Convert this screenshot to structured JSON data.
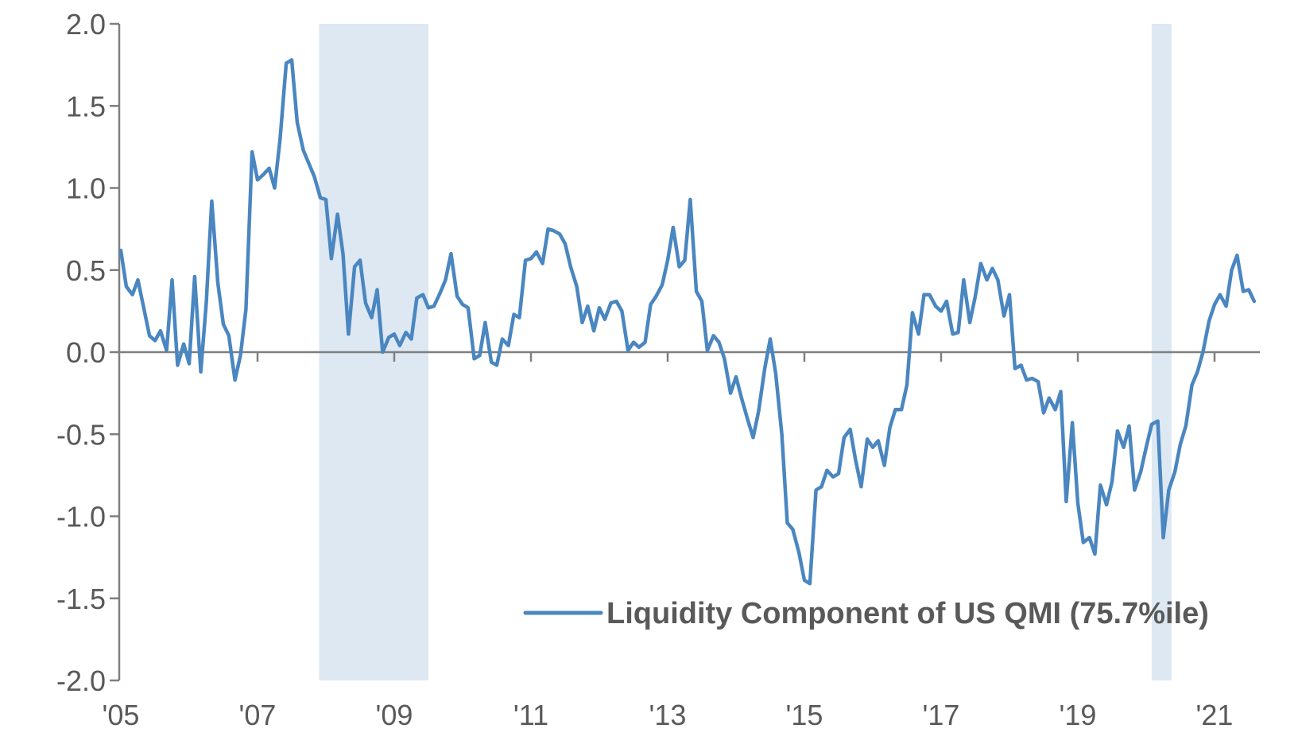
{
  "chart_data": {
    "type": "line",
    "title": "",
    "xlabel": "",
    "ylabel": "",
    "xlim": [
      2005.0,
      2021.75
    ],
    "ylim": [
      -2.0,
      2.0
    ],
    "y_ticks": [
      2.0,
      1.5,
      1.0,
      0.5,
      0.0,
      -0.5,
      -1.0,
      -1.5,
      -2.0
    ],
    "y_tick_labels": [
      "2.0",
      "1.5",
      "1.0",
      "0.5",
      "0.0",
      "-0.5",
      "-1.0",
      "-1.5",
      "-2.0"
    ],
    "x_ticks": [
      2005,
      2007,
      2009,
      2011,
      2013,
      2015,
      2017,
      2019,
      2021
    ],
    "x_tick_labels": [
      "'05",
      "'07",
      "'09",
      "'11",
      "'13",
      "'15",
      "'17",
      "'19",
      "'21"
    ],
    "shaded_periods": [
      {
        "label": "recession-2008",
        "start": 2007.9,
        "end": 2009.5
      },
      {
        "label": "recession-2020",
        "start": 2020.08,
        "end": 2020.37
      }
    ],
    "legend": {
      "placement": "bottom-right"
    },
    "series": [
      {
        "name": "Liquidity Component of US QMI (75.7%ile)",
        "color": "#4a86c0",
        "points": [
          [
            2005.0,
            0.62
          ],
          [
            2005.08,
            0.4
          ],
          [
            2005.17,
            0.35
          ],
          [
            2005.25,
            0.44
          ],
          [
            2005.33,
            0.28
          ],
          [
            2005.42,
            0.1
          ],
          [
            2005.5,
            0.07
          ],
          [
            2005.58,
            0.13
          ],
          [
            2005.67,
            0.01
          ],
          [
            2005.75,
            0.44
          ],
          [
            2005.83,
            -0.08
          ],
          [
            2005.92,
            0.05
          ],
          [
            2006.0,
            -0.07
          ],
          [
            2006.08,
            0.46
          ],
          [
            2006.17,
            -0.12
          ],
          [
            2006.25,
            0.3
          ],
          [
            2006.33,
            0.92
          ],
          [
            2006.42,
            0.42
          ],
          [
            2006.5,
            0.17
          ],
          [
            2006.58,
            0.1
          ],
          [
            2006.67,
            -0.17
          ],
          [
            2006.75,
            -0.02
          ],
          [
            2006.83,
            0.26
          ],
          [
            2006.92,
            1.22
          ],
          [
            2007.0,
            1.05
          ],
          [
            2007.08,
            1.08
          ],
          [
            2007.17,
            1.12
          ],
          [
            2007.25,
            1.0
          ],
          [
            2007.33,
            1.3
          ],
          [
            2007.42,
            1.76
          ],
          [
            2007.5,
            1.78
          ],
          [
            2007.58,
            1.4
          ],
          [
            2007.67,
            1.23
          ],
          [
            2007.75,
            1.15
          ],
          [
            2007.83,
            1.07
          ],
          [
            2007.92,
            0.94
          ],
          [
            2008.0,
            0.93
          ],
          [
            2008.08,
            0.57
          ],
          [
            2008.17,
            0.84
          ],
          [
            2008.25,
            0.6
          ],
          [
            2008.33,
            0.11
          ],
          [
            2008.42,
            0.52
          ],
          [
            2008.5,
            0.56
          ],
          [
            2008.58,
            0.3
          ],
          [
            2008.67,
            0.21
          ],
          [
            2008.75,
            0.38
          ],
          [
            2008.83,
            0.0
          ],
          [
            2008.92,
            0.09
          ],
          [
            2009.0,
            0.11
          ],
          [
            2009.08,
            0.04
          ],
          [
            2009.17,
            0.12
          ],
          [
            2009.25,
            0.08
          ],
          [
            2009.33,
            0.33
          ],
          [
            2009.42,
            0.35
          ],
          [
            2009.5,
            0.27
          ],
          [
            2009.58,
            0.28
          ],
          [
            2009.67,
            0.36
          ],
          [
            2009.75,
            0.44
          ],
          [
            2009.83,
            0.6
          ],
          [
            2009.92,
            0.34
          ],
          [
            2010.0,
            0.29
          ],
          [
            2010.08,
            0.27
          ],
          [
            2010.17,
            -0.04
          ],
          [
            2010.25,
            -0.02
          ],
          [
            2010.33,
            0.18
          ],
          [
            2010.42,
            -0.06
          ],
          [
            2010.5,
            -0.08
          ],
          [
            2010.58,
            0.08
          ],
          [
            2010.67,
            0.04
          ],
          [
            2010.75,
            0.23
          ],
          [
            2010.83,
            0.21
          ],
          [
            2010.92,
            0.56
          ],
          [
            2011.0,
            0.57
          ],
          [
            2011.08,
            0.61
          ],
          [
            2011.17,
            0.54
          ],
          [
            2011.25,
            0.75
          ],
          [
            2011.33,
            0.74
          ],
          [
            2011.42,
            0.72
          ],
          [
            2011.5,
            0.66
          ],
          [
            2011.58,
            0.52
          ],
          [
            2011.67,
            0.4
          ],
          [
            2011.75,
            0.18
          ],
          [
            2011.83,
            0.28
          ],
          [
            2011.92,
            0.13
          ],
          [
            2012.0,
            0.27
          ],
          [
            2012.08,
            0.2
          ],
          [
            2012.17,
            0.3
          ],
          [
            2012.25,
            0.31
          ],
          [
            2012.33,
            0.25
          ],
          [
            2012.42,
            0.01
          ],
          [
            2012.5,
            0.06
          ],
          [
            2012.58,
            0.03
          ],
          [
            2012.67,
            0.06
          ],
          [
            2012.75,
            0.29
          ],
          [
            2012.83,
            0.34
          ],
          [
            2012.92,
            0.41
          ],
          [
            2013.0,
            0.56
          ],
          [
            2013.08,
            0.76
          ],
          [
            2013.17,
            0.52
          ],
          [
            2013.25,
            0.56
          ],
          [
            2013.33,
            0.93
          ],
          [
            2013.42,
            0.37
          ],
          [
            2013.5,
            0.31
          ],
          [
            2013.58,
            0.01
          ],
          [
            2013.67,
            0.1
          ],
          [
            2013.75,
            0.06
          ],
          [
            2013.83,
            -0.04
          ],
          [
            2013.92,
            -0.25
          ],
          [
            2014.0,
            -0.15
          ],
          [
            2014.08,
            -0.28
          ],
          [
            2014.17,
            -0.41
          ],
          [
            2014.25,
            -0.52
          ],
          [
            2014.33,
            -0.36
          ],
          [
            2014.42,
            -0.1
          ],
          [
            2014.5,
            0.08
          ],
          [
            2014.58,
            -0.13
          ],
          [
            2014.67,
            -0.5
          ],
          [
            2014.75,
            -1.04
          ],
          [
            2014.83,
            -1.08
          ],
          [
            2014.92,
            -1.22
          ],
          [
            2015.0,
            -1.39
          ],
          [
            2015.08,
            -1.41
          ],
          [
            2015.17,
            -0.84
          ],
          [
            2015.25,
            -0.82
          ],
          [
            2015.33,
            -0.72
          ],
          [
            2015.42,
            -0.76
          ],
          [
            2015.5,
            -0.74
          ],
          [
            2015.58,
            -0.52
          ],
          [
            2015.67,
            -0.47
          ],
          [
            2015.75,
            -0.66
          ],
          [
            2015.83,
            -0.82
          ],
          [
            2015.92,
            -0.53
          ],
          [
            2016.0,
            -0.58
          ],
          [
            2016.08,
            -0.54
          ],
          [
            2016.17,
            -0.69
          ],
          [
            2016.25,
            -0.46
          ],
          [
            2016.33,
            -0.35
          ],
          [
            2016.42,
            -0.35
          ],
          [
            2016.5,
            -0.2
          ],
          [
            2016.58,
            0.24
          ],
          [
            2016.67,
            0.11
          ],
          [
            2016.75,
            0.35
          ],
          [
            2016.83,
            0.35
          ],
          [
            2016.92,
            0.28
          ],
          [
            2017.0,
            0.25
          ],
          [
            2017.08,
            0.31
          ],
          [
            2017.17,
            0.11
          ],
          [
            2017.25,
            0.12
          ],
          [
            2017.33,
            0.44
          ],
          [
            2017.42,
            0.18
          ],
          [
            2017.5,
            0.34
          ],
          [
            2017.58,
            0.54
          ],
          [
            2017.67,
            0.44
          ],
          [
            2017.75,
            0.51
          ],
          [
            2017.83,
            0.44
          ],
          [
            2017.92,
            0.22
          ],
          [
            2018.0,
            0.35
          ],
          [
            2018.08,
            -0.1
          ],
          [
            2018.17,
            -0.08
          ],
          [
            2018.25,
            -0.17
          ],
          [
            2018.33,
            -0.16
          ],
          [
            2018.42,
            -0.18
          ],
          [
            2018.5,
            -0.37
          ],
          [
            2018.58,
            -0.28
          ],
          [
            2018.67,
            -0.35
          ],
          [
            2018.75,
            -0.24
          ],
          [
            2018.83,
            -0.91
          ],
          [
            2018.92,
            -0.43
          ],
          [
            2019.0,
            -0.92
          ],
          [
            2019.08,
            -1.16
          ],
          [
            2019.17,
            -1.13
          ],
          [
            2019.25,
            -1.23
          ],
          [
            2019.33,
            -0.81
          ],
          [
            2019.42,
            -0.93
          ],
          [
            2019.5,
            -0.79
          ],
          [
            2019.58,
            -0.48
          ],
          [
            2019.67,
            -0.58
          ],
          [
            2019.75,
            -0.45
          ],
          [
            2019.83,
            -0.84
          ],
          [
            2019.92,
            -0.73
          ],
          [
            2020.0,
            -0.58
          ],
          [
            2020.08,
            -0.44
          ],
          [
            2020.17,
            -0.42
          ],
          [
            2020.25,
            -1.13
          ],
          [
            2020.33,
            -0.84
          ],
          [
            2020.42,
            -0.73
          ],
          [
            2020.5,
            -0.56
          ],
          [
            2020.58,
            -0.45
          ],
          [
            2020.67,
            -0.2
          ],
          [
            2020.75,
            -0.12
          ],
          [
            2020.83,
            0.0
          ],
          [
            2020.92,
            0.19
          ],
          [
            2021.0,
            0.29
          ],
          [
            2021.08,
            0.35
          ],
          [
            2021.17,
            0.28
          ],
          [
            2021.25,
            0.5
          ],
          [
            2021.33,
            0.59
          ],
          [
            2021.42,
            0.37
          ],
          [
            2021.5,
            0.38
          ],
          [
            2021.58,
            0.31
          ]
        ]
      }
    ]
  }
}
